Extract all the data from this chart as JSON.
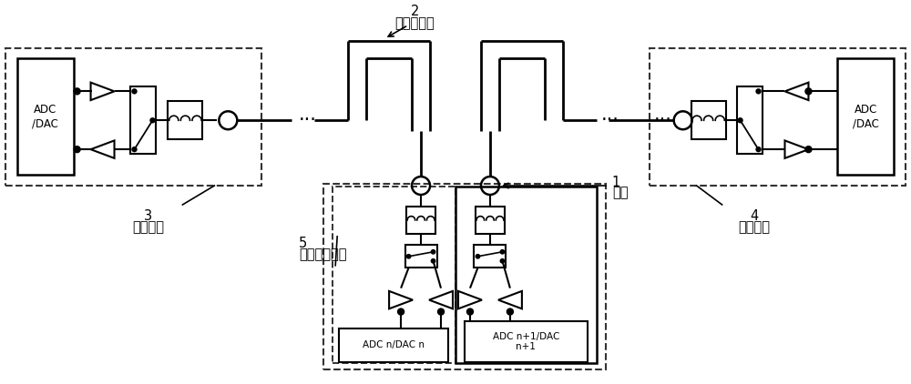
{
  "bg_color": "#ffffff",
  "black": "#000000",
  "label_2": "2",
  "label_2_text": "耦合传输线",
  "label_1": "1",
  "label_1_text": "天线",
  "label_3": "3",
  "label_3_text": "校准通道",
  "label_4": "4",
  "label_4_text": "校准通道",
  "label_5": "5",
  "label_5_text": "系统收发通道",
  "adc_dac_left": "ADC\n/DAC",
  "adc_dac_n": "ADC n/DAC n",
  "adc_dac_n1": "ADC n+1/DAC\nn+1",
  "adc_dac_right": "ADC\n/DAC",
  "figw": 10.0,
  "figh": 4.22,
  "dpi": 100
}
